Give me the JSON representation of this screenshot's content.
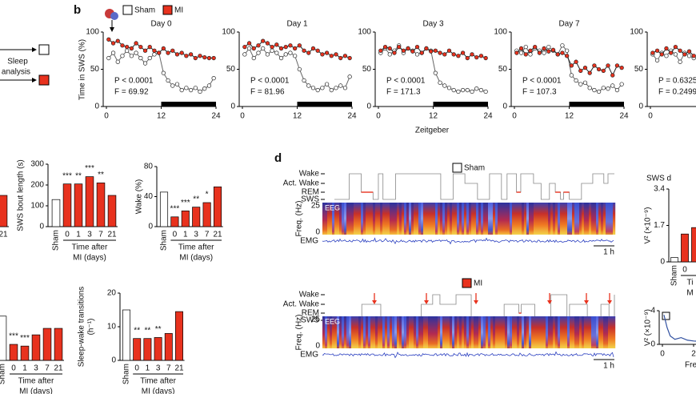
{
  "schematic": {
    "lines": [
      "Sleep",
      "analysis"
    ]
  },
  "panel_b": {
    "label": "b",
    "ylabel": "Time in SWS (%)",
    "xlabel": "Zeitgeber"
  },
  "panel_d": {
    "label": "d",
    "recordings": [
      {
        "group": "Sham",
        "color": "#ffffff",
        "states": [
          "Wake",
          "Act. Wake",
          "REM",
          "SWS"
        ],
        "freq_label": "Freq. (Hz)",
        "freq_ticks": [
          25,
          0
        ],
        "eeg": "EEG",
        "emg": "EMG",
        "scale": "1 h"
      },
      {
        "group": "MI",
        "color": "#e8321e",
        "states": [
          "Wake",
          "Act. Wake",
          "REM",
          "SWS"
        ],
        "freq_label": "Freq. (Hz)",
        "freq_ticks": [
          25,
          0
        ],
        "eeg": "EEG",
        "emg": "EMG",
        "scale": "1 h"
      }
    ]
  },
  "chart_data": [
    {
      "type": "line",
      "title": "Day 0",
      "markers": true,
      "x": [
        0.5,
        1.5,
        2.5,
        3.5,
        4.5,
        5.5,
        6.5,
        7.5,
        8.5,
        9.5,
        10.5,
        11.5,
        12.5,
        13.5,
        14.5,
        15.5,
        16.5,
        17.5,
        18.5,
        19.5,
        20.5,
        21.5,
        22.5,
        23.5
      ],
      "series": [
        {
          "name": "Sham",
          "color": "#ffffff",
          "values": [
            65,
            72,
            60,
            68,
            75,
            68,
            72,
            65,
            58,
            65,
            70,
            72,
            45,
            35,
            28,
            30,
            22,
            25,
            22,
            25,
            20,
            24,
            28,
            38
          ]
        },
        {
          "name": "MI",
          "color": "#e8321e",
          "values": [
            90,
            85,
            88,
            82,
            80,
            78,
            85,
            80,
            75,
            80,
            75,
            72,
            78,
            72,
            75,
            70,
            72,
            68,
            70,
            65,
            68,
            66,
            65,
            65
          ]
        }
      ],
      "xlim": [
        0,
        24
      ],
      "xticks": [
        0,
        12,
        24
      ],
      "ylim": [
        0,
        100
      ],
      "yticks": [
        0,
        50,
        100
      ],
      "dark_phase": [
        12,
        24
      ],
      "annotations": [
        "P < 0.0001",
        "F = 69.92"
      ]
    },
    {
      "type": "line",
      "title": "Day 1",
      "markers": true,
      "x": [
        0.5,
        1.5,
        2.5,
        3.5,
        4.5,
        5.5,
        6.5,
        7.5,
        8.5,
        9.5,
        10.5,
        11.5,
        12.5,
        13.5,
        14.5,
        15.5,
        16.5,
        17.5,
        18.5,
        19.5,
        20.5,
        21.5,
        22.5,
        23.5
      ],
      "series": [
        {
          "color": "#ffffff",
          "values": [
            70,
            78,
            65,
            72,
            78,
            70,
            75,
            72,
            65,
            70,
            72,
            68,
            50,
            35,
            28,
            25,
            22,
            25,
            30,
            22,
            25,
            28,
            25,
            40
          ]
        },
        {
          "color": "#e8321e",
          "values": [
            80,
            85,
            78,
            82,
            88,
            85,
            80,
            83,
            78,
            80,
            82,
            78,
            82,
            75,
            72,
            78,
            75,
            70,
            72,
            68,
            70,
            65,
            68,
            65
          ]
        }
      ],
      "xlim": [
        0,
        24
      ],
      "xticks": [
        0,
        12,
        24
      ],
      "ylim": [
        0,
        100
      ],
      "yticks": [
        0,
        50,
        100
      ],
      "dark_phase": [
        12,
        24
      ],
      "annotations": [
        "P < 0.0001",
        "F = 81.96"
      ]
    },
    {
      "type": "line",
      "title": "Day 3",
      "markers": true,
      "x": [
        0.5,
        1.5,
        2.5,
        3.5,
        4.5,
        5.5,
        6.5,
        7.5,
        8.5,
        9.5,
        10.5,
        11.5,
        12.5,
        13.5,
        14.5,
        15.5,
        16.5,
        17.5,
        18.5,
        19.5,
        20.5,
        21.5,
        22.5,
        23.5
      ],
      "series": [
        {
          "color": "#ffffff",
          "values": [
            72,
            78,
            70,
            75,
            82,
            72,
            78,
            75,
            70,
            72,
            78,
            75,
            45,
            32,
            28,
            25,
            22,
            20,
            22,
            22,
            20,
            24,
            22,
            20
          ]
        },
        {
          "color": "#e8321e",
          "values": [
            75,
            80,
            78,
            72,
            80,
            75,
            78,
            74,
            80,
            72,
            78,
            74,
            75,
            72,
            70,
            75,
            70,
            68,
            72,
            65,
            70,
            66,
            68,
            65
          ]
        }
      ],
      "xlim": [
        0,
        24
      ],
      "xticks": [
        0,
        12,
        24
      ],
      "ylim": [
        0,
        100
      ],
      "yticks": [
        0,
        50,
        100
      ],
      "dark_phase": [
        12,
        24
      ],
      "annotations": [
        "P < 0.0001",
        "F = 171.3"
      ]
    },
    {
      "type": "line",
      "title": "Day 7",
      "markers": true,
      "x": [
        0.5,
        1.5,
        2.5,
        3.5,
        4.5,
        5.5,
        6.5,
        7.5,
        8.5,
        9.5,
        10.5,
        11.5,
        12.5,
        13.5,
        14.5,
        15.5,
        16.5,
        17.5,
        18.5,
        19.5,
        20.5,
        21.5,
        22.5,
        23.5
      ],
      "series": [
        {
          "color": "#ffffff",
          "values": [
            75,
            72,
            80,
            70,
            78,
            75,
            72,
            80,
            75,
            70,
            82,
            75,
            42,
            35,
            30,
            32,
            25,
            22,
            20,
            25,
            24,
            28,
            22,
            30
          ]
        },
        {
          "color": "#e8321e",
          "values": [
            72,
            78,
            70,
            75,
            80,
            72,
            78,
            74,
            76,
            70,
            72,
            68,
            55,
            60,
            48,
            52,
            45,
            55,
            50,
            48,
            55,
            42,
            55,
            52
          ]
        }
      ],
      "xlim": [
        0,
        24
      ],
      "xticks": [
        0,
        12,
        24
      ],
      "ylim": [
        0,
        100
      ],
      "yticks": [
        0,
        50,
        100
      ],
      "dark_phase": [
        12,
        24
      ],
      "annotations": [
        "P < 0.0001",
        "F = 107.3"
      ]
    },
    {
      "type": "line",
      "markers": true,
      "x": [
        0.5,
        1.5,
        2.5,
        3.5,
        4.5,
        5.5,
        6.5,
        7.5,
        8.5,
        9.5
      ],
      "series": [
        {
          "color": "#ffffff",
          "values": [
            70,
            62,
            72,
            68,
            75,
            70,
            60,
            72,
            68,
            65
          ]
        },
        {
          "color": "#e8321e",
          "values": [
            72,
            75,
            70,
            78,
            72,
            80,
            75,
            70,
            74,
            68
          ]
        }
      ],
      "xlim": [
        0,
        24
      ],
      "xticks": [
        0
      ],
      "ylim": [
        0,
        100
      ],
      "yticks": [
        0,
        50,
        100
      ],
      "annotations": [
        "P = 0.6325",
        "F = 0.2499"
      ]
    },
    {
      "type": "bar",
      "categories": [
        "21"
      ],
      "values": [
        150
      ],
      "colors": [
        "#e8321e"
      ],
      "ylim": [
        0,
        300
      ]
    },
    {
      "type": "bar",
      "ylabel": [
        "SWS bout length (s)"
      ],
      "categories": [
        "Sham",
        "0",
        "1",
        "3",
        "7",
        "21"
      ],
      "values": [
        130,
        205,
        205,
        240,
        210,
        150
      ],
      "colors": [
        "#ffffff",
        "#e8321e",
        "#e8321e",
        "#e8321e",
        "#e8321e",
        "#e8321e"
      ],
      "significance": [
        null,
        "***",
        "**",
        "***",
        "**",
        null
      ],
      "ylim": [
        0,
        300
      ],
      "yticks": [
        0,
        100,
        200,
        300
      ],
      "xlabel": [
        "Time after",
        "MI (days)"
      ]
    },
    {
      "type": "bar",
      "ylabel": [
        "Wake (%)"
      ],
      "categories": [
        "Sham",
        "0",
        "1",
        "3",
        "7",
        "21"
      ],
      "values": [
        46,
        13,
        21,
        26,
        32,
        53
      ],
      "colors": [
        "#ffffff",
        "#e8321e",
        "#e8321e",
        "#e8321e",
        "#e8321e",
        "#e8321e"
      ],
      "significance": [
        null,
        "***",
        "***",
        "**",
        "*",
        null
      ],
      "ylim": [
        0,
        80
      ],
      "yticks": [
        0,
        40,
        80
      ],
      "xlabel": [
        "Time after",
        "MI (days)"
      ]
    },
    {
      "type": "bar",
      "categories": [
        "Sham",
        "0",
        "1",
        "3",
        "7",
        "21"
      ],
      "values": [
        13,
        4.7,
        4.2,
        7.5,
        9.4,
        9.4
      ],
      "colors": [
        "#ffffff",
        "#e8321e",
        "#e8321e",
        "#e8321e",
        "#e8321e",
        "#e8321e"
      ],
      "significance": [
        null,
        "***",
        "***",
        null,
        null,
        null
      ],
      "ylim": [
        0,
        20
      ],
      "xlabel": [
        "Time after",
        "MI (days)"
      ]
    },
    {
      "type": "bar",
      "ylabel": [
        "Sleep-wake transitions",
        "(h⁻¹)"
      ],
      "categories": [
        "Sham",
        "0",
        "1",
        "3",
        "7",
        "21"
      ],
      "values": [
        15,
        6.5,
        6.5,
        6.8,
        8,
        14.5
      ],
      "colors": [
        "#ffffff",
        "#e8321e",
        "#e8321e",
        "#e8321e",
        "#e8321e",
        "#e8321e"
      ],
      "significance": [
        null,
        "**",
        "**",
        "**",
        null,
        null
      ],
      "ylim": [
        0,
        20
      ],
      "yticks": [
        0,
        10,
        20
      ],
      "xlabel": [
        "Time after",
        "MI (days)"
      ]
    },
    {
      "type": "bar",
      "title": "SWS d",
      "ylabel": [
        "V² (×10⁻⁹)"
      ],
      "categories": [
        "Sham",
        "0",
        null
      ],
      "values": [
        0.2,
        1.3,
        1.6
      ],
      "colors": [
        "#ffffff",
        "#e8321e",
        "#e8321e"
      ],
      "ylim": [
        0,
        3.4
      ],
      "yticks": [
        0,
        1.7,
        3.4
      ],
      "xlabel": [
        "Ti",
        "M"
      ]
    },
    {
      "type": "line",
      "ylabel": [
        "V² (×10⁻⁹)"
      ],
      "x": [
        0.1,
        0.3,
        0.5,
        0.8,
        1.2,
        1.6,
        2.0,
        2.4
      ],
      "series": [
        {
          "color": "#3050a0",
          "values": [
            3.5,
            2.0,
            1.0,
            0.6,
            0.8,
            0.5,
            0.4,
            0.35
          ]
        }
      ],
      "xlim": [
        0,
        4
      ],
      "xticks": [
        0,
        2
      ],
      "ylim": [
        0,
        4
      ],
      "yticks": [
        0,
        4
      ],
      "xlabel": "Fre"
    }
  ]
}
